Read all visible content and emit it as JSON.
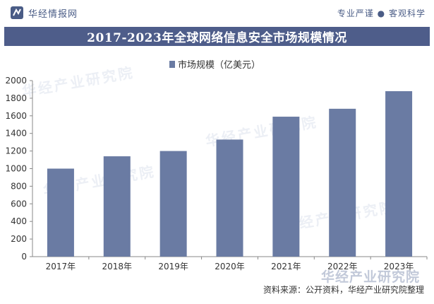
{
  "header": {
    "brand_name": "华经情报网",
    "tagline_left": "专业严谨",
    "tagline_sep": "●",
    "tagline_right": "客观科学"
  },
  "title": "2017-2023年全球网络信息安全市场规模情况",
  "source": "资料来源：公开资料，华经产业研究院整理",
  "watermark": "华经产业研究院",
  "colors": {
    "bar": "#6a7ba3",
    "title_bg": "#4e5d8a",
    "brand": "#4a5c86"
  },
  "chart_data": {
    "type": "bar",
    "categories": [
      "2017年",
      "2018年",
      "2019年",
      "2020年",
      "2021年",
      "2022年",
      "2023年"
    ],
    "series": [
      {
        "name": "市场规模（亿美元）",
        "values": [
          1000,
          1140,
          1200,
          1330,
          1590,
          1680,
          1880
        ]
      }
    ],
    "title": "2017-2023年全球网络信息安全市场规模情况",
    "xlabel": "",
    "ylabel": "",
    "ylim": [
      0,
      2000
    ],
    "yticks": [
      0,
      200,
      400,
      600,
      800,
      1000,
      1200,
      1400,
      1600,
      1800,
      2000
    ],
    "grid": false,
    "legend": "top-center"
  }
}
